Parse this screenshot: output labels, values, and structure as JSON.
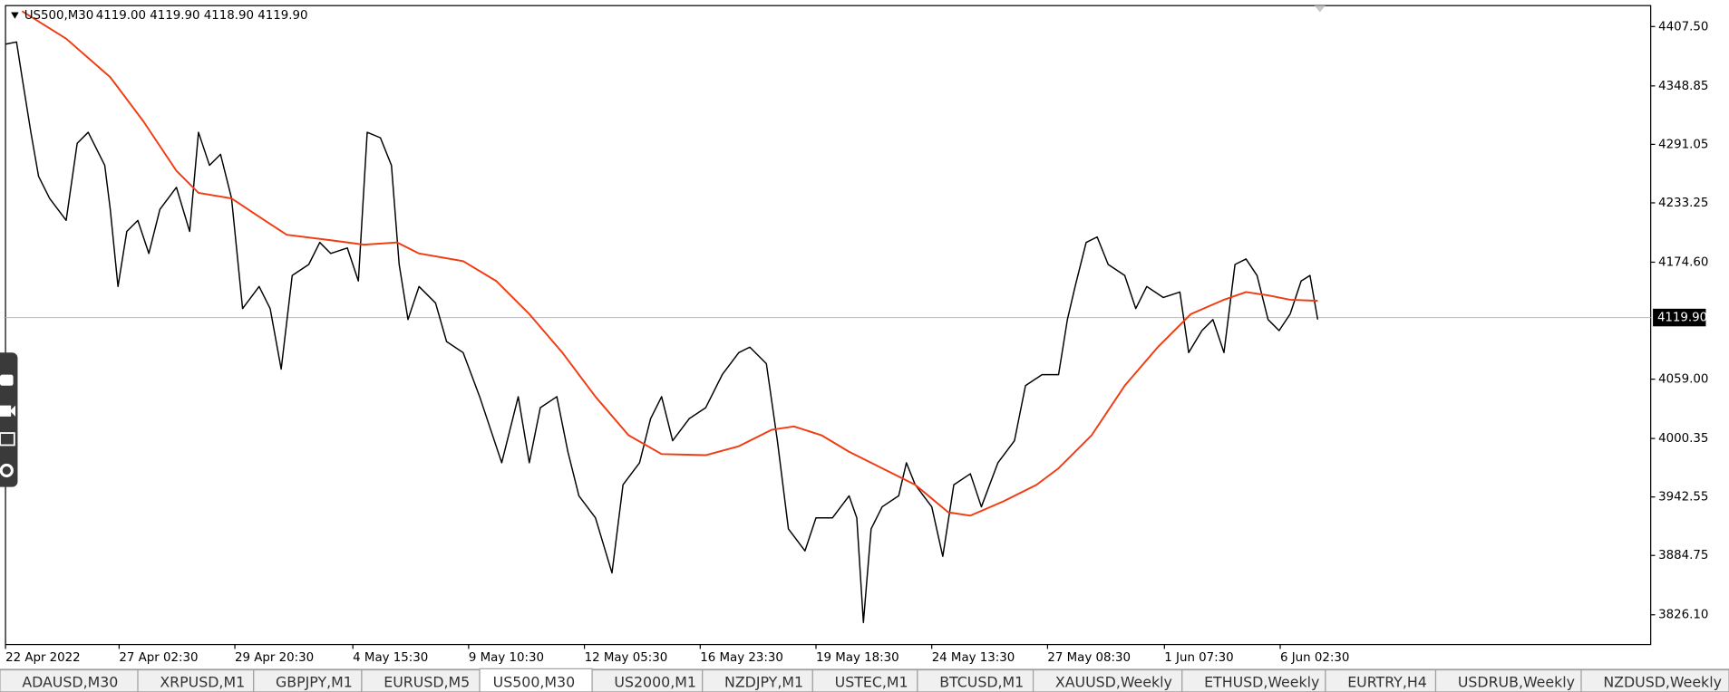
{
  "header": {
    "symbol": "US500,M30",
    "ohlc": "4119.00 4119.90 4118.90 4119.90"
  },
  "chart_data": {
    "type": "line",
    "xlim": [
      0,
      1492
    ],
    "ylim": [
      3796.7,
      4428.2
    ],
    "yticks": [
      {
        "value": 4407.5,
        "label": "4407.50"
      },
      4348.85,
      4291.05,
      4233.25,
      {
        "value": 4174.6,
        "label": "4174.60"
      },
      {
        "value": 4059,
        "label": "4059.00"
      },
      4000.35,
      3942.55,
      3884.75,
      {
        "value": 3826.1,
        "label": "3826.10"
      }
    ],
    "xticks": [
      {
        "value": 0,
        "label": "22 Apr 2022"
      },
      {
        "value": 103,
        "label": "27 Apr 02:30"
      },
      {
        "value": 208,
        "label": "29 Apr 20:30"
      },
      {
        "value": 315,
        "label": "4 May 15:30"
      },
      {
        "value": 420,
        "label": "9 May 10:30"
      },
      {
        "value": 525,
        "label": "12 May 05:30"
      },
      {
        "value": 630,
        "label": "16 May 23:30"
      },
      {
        "value": 735,
        "label": "19 May 18:30"
      },
      {
        "value": 840,
        "label": "24 May 13:30"
      },
      {
        "value": 945,
        "label": "27 May 08:30"
      },
      {
        "value": 1051,
        "label": "1 Jun 07:30"
      },
      {
        "value": 1156,
        "label": "6 Jun 02:30"
      }
    ],
    "current_price": {
      "value": 4119.9,
      "label": "4119.90"
    },
    "series": [
      {
        "color": "#000000",
        "x": [
          0,
          10,
          15,
          23,
          30,
          40,
          55,
          65,
          75,
          90,
          95,
          102,
          110,
          120,
          130,
          140,
          155,
          167,
          175,
          185,
          195,
          205,
          215,
          230,
          240,
          250,
          260,
          275,
          285,
          295,
          310,
          320,
          328,
          340,
          350,
          357,
          365,
          375,
          390,
          400,
          415,
          430,
          440,
          450,
          465,
          475,
          485,
          500,
          510,
          520,
          535,
          550,
          560,
          575,
          585,
          595,
          605,
          620,
          635,
          650,
          665,
          675,
          690,
          700,
          710,
          725,
          735,
          750,
          765,
          772,
          778,
          785,
          795,
          810,
          817,
          825,
          840,
          850,
          860,
          875,
          885,
          900,
          915,
          925,
          940,
          955,
          963,
          970,
          980,
          990,
          1000,
          1015,
          1025,
          1035,
          1050,
          1065,
          1073,
          1085,
          1095,
          1105,
          1115,
          1125,
          1135,
          1145,
          1155,
          1165,
          1175,
          1183,
          1190
        ],
        "values": [
          4390.1,
          4392.3,
          4357.4,
          4303.0,
          4259.4,
          4237.7,
          4215.9,
          4292.1,
          4303.0,
          4270.3,
          4226.8,
          4150.6,
          4205.0,
          4215.9,
          4183.2,
          4226.8,
          4248.5,
          4205.0,
          4303.0,
          4270.3,
          4281.2,
          4237.7,
          4128.8,
          4150.6,
          4128.8,
          4068.9,
          4161.4,
          4172.3,
          4194.1,
          4183.2,
          4188.7,
          4156.0,
          4303.0,
          4297.5,
          4270.3,
          4172.3,
          4117.9,
          4150.6,
          4134.2,
          4096.1,
          4085.2,
          4041.7,
          4009.0,
          3976.3,
          4041.7,
          3976.3,
          4030.8,
          4041.7,
          3987.2,
          3943.7,
          3921.9,
          3867.5,
          3954.6,
          3976.3,
          4019.9,
          4041.7,
          3998.1,
          4019.9,
          4030.8,
          4063.5,
          4085.2,
          4090.7,
          4074.3,
          3998.1,
          3911.0,
          3889.2,
          3921.9,
          3921.9,
          3943.7,
          3921.9,
          3818.5,
          3911.0,
          3932.8,
          3943.7,
          3976.3,
          3954.6,
          3932.8,
          3883.8,
          3954.6,
          3965.5,
          3932.8,
          3976.3,
          3998.1,
          4052.6,
          4063.5,
          4063.5,
          4117.9,
          4150.6,
          4194.1,
          4199.6,
          4172.3,
          4161.4,
          4128.8,
          4150.6,
          4139.7,
          4145.1,
          4085.2,
          4107.0,
          4117.9,
          4085.2,
          4172.3,
          4177.8,
          4161.4,
          4117.9,
          4107.0,
          4123.3,
          4156.0,
          4161.4,
          4117.9
        ]
      },
      {
        "color": "#f03c10",
        "x": [
          15,
          55,
          95,
          125,
          155,
          175,
          205,
          235,
          255,
          295,
          325,
          355,
          375,
          415,
          445,
          475,
          505,
          535,
          565,
          595,
          635,
          665,
          695,
          715,
          740,
          765,
          795,
          825,
          855,
          875,
          905,
          935,
          955,
          985,
          1015,
          1045,
          1075,
          1105,
          1125,
          1145,
          1165,
          1190
        ],
        "values": [
          4422.8,
          4395.5,
          4357.4,
          4313.9,
          4264.9,
          4243.1,
          4237.7,
          4215.9,
          4201.7,
          4196.3,
          4191.9,
          4194.1,
          4183.2,
          4175.6,
          4156.0,
          4123.3,
          4085.2,
          4041.7,
          4003.6,
          3985.0,
          3983.9,
          3992.7,
          4009.0,
          4012.3,
          4003.6,
          3987.2,
          3970.9,
          3954.6,
          3927.4,
          3924.1,
          3938.2,
          3954.6,
          3970.9,
          4003.6,
          4052.6,
          4090.7,
          4123.3,
          4137.5,
          4145.1,
          4141.8,
          4137.5,
          4136.4
        ]
      }
    ]
  },
  "tabs": [
    "ADAUSD,M30",
    "XRPUSD,M1",
    "GBPJPY,M1",
    "EURUSD,M5",
    "US500,M30",
    "US2000,M1",
    "NZDJPY,M1",
    "USTEC,M1",
    "BTCUSD,M1",
    "XAUUSD,Weekly",
    "ETHUSD,Weekly",
    "EURTRY,H4",
    "USDRUB,Weekly",
    "NZDUSD,Weekly"
  ]
}
